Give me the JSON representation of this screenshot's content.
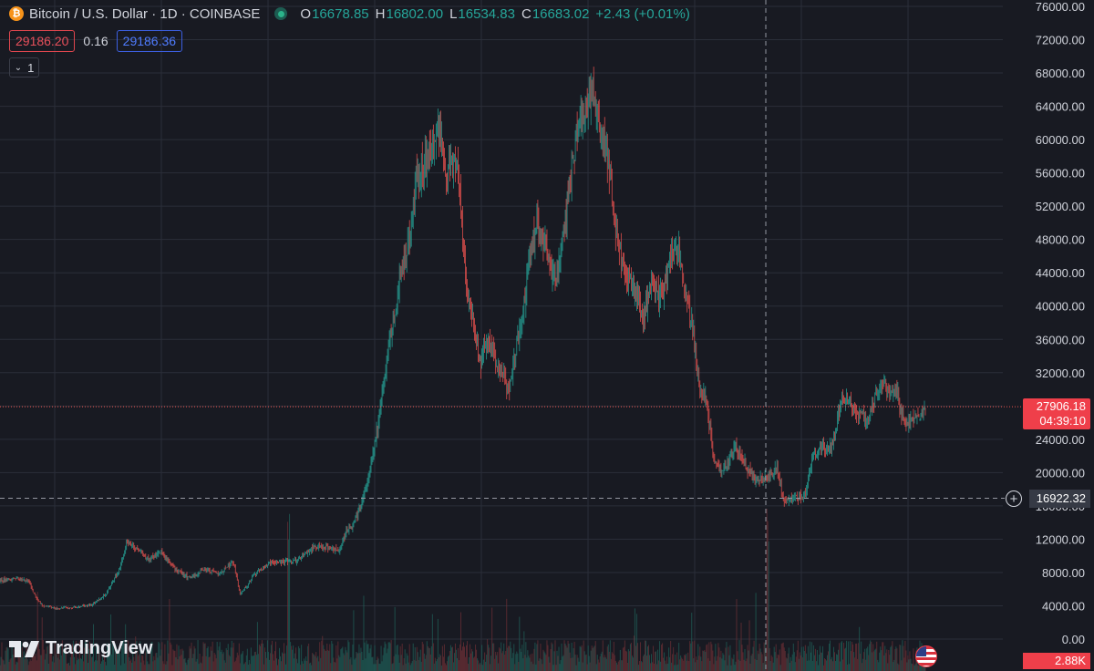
{
  "header": {
    "coin_badge": "₿",
    "symbol": "Bitcoin / U.S. Dollar · 1D · COINBASE",
    "ohlc": [
      {
        "key": "O",
        "value": "16678.85"
      },
      {
        "key": "H",
        "value": "16802.00"
      },
      {
        "key": "L",
        "value": "16534.83"
      },
      {
        "key": "C",
        "value": "16683.02"
      }
    ],
    "change": "+2.43 (+0.01%)"
  },
  "trade": {
    "sell": "29186.20",
    "spread": "0.16",
    "buy": "29186.36"
  },
  "indicators": {
    "count": "1"
  },
  "price_label": {
    "price": "27906.18",
    "countdown": "04:39:10"
  },
  "crosshair_label": {
    "price": "16922.32",
    "plus": "+"
  },
  "volume_label": "2.88K",
  "logo": {
    "text": "TradingView"
  },
  "colors": {
    "up": "#26a69a",
    "down": "#ef5350",
    "background": "#181a22",
    "grid": "#2a2e39"
  },
  "chart_data": {
    "type": "candlestick",
    "symbol": "BTCUSD",
    "interval": "1D",
    "yticks": [
      "76000.00",
      "72000.00",
      "68000.00",
      "64000.00",
      "60000.00",
      "56000.00",
      "52000.00",
      "48000.00",
      "44000.00",
      "40000.00",
      "36000.00",
      "32000.00",
      "28000.00",
      "24000.00",
      "20000.00",
      "16000.00",
      "12000.00",
      "8000.00",
      "4000.00",
      "0.00"
    ],
    "ylim": [
      0,
      76000
    ],
    "last_price": 27906.18,
    "crosshair_price": 16922.32,
    "grid": true,
    "price_path": [
      [
        0,
        7000
      ],
      [
        2,
        7300
      ],
      [
        4,
        7000
      ],
      [
        5,
        5100
      ],
      [
        6,
        4000
      ],
      [
        8,
        3700
      ],
      [
        11,
        3850
      ],
      [
        13,
        4100
      ],
      [
        15,
        5400
      ],
      [
        17,
        8500
      ],
      [
        18,
        11900
      ],
      [
        19,
        11000
      ],
      [
        21,
        9600
      ],
      [
        23,
        10300
      ],
      [
        25,
        8200
      ],
      [
        27,
        7300
      ],
      [
        29,
        8500
      ],
      [
        31,
        7700
      ],
      [
        33,
        9300
      ],
      [
        34,
        5400
      ],
      [
        35,
        6400
      ],
      [
        36,
        7800
      ],
      [
        38,
        9000
      ],
      [
        40,
        9300
      ],
      [
        42,
        9400
      ],
      [
        44,
        10800
      ],
      [
        45,
        11200
      ],
      [
        46,
        11000
      ],
      [
        48,
        10700
      ],
      [
        49,
        12900
      ],
      [
        50,
        13800
      ],
      [
        51,
        15800
      ],
      [
        52,
        19000
      ],
      [
        53,
        23000
      ],
      [
        54,
        29000
      ],
      [
        55,
        35000
      ],
      [
        56,
        40000
      ],
      [
        57,
        45000
      ],
      [
        58,
        48000
      ],
      [
        59,
        56000
      ],
      [
        60,
        57000
      ],
      [
        61,
        58000
      ],
      [
        62,
        62000
      ],
      [
        63,
        56000
      ],
      [
        64,
        57000
      ],
      [
        65,
        55000
      ],
      [
        66,
        42000
      ],
      [
        67,
        38000
      ],
      [
        68,
        33000
      ],
      [
        69,
        36000
      ],
      [
        70,
        34000
      ],
      [
        71,
        32000
      ],
      [
        72,
        30000
      ],
      [
        73,
        35000
      ],
      [
        74,
        39000
      ],
      [
        75,
        46000
      ],
      [
        76,
        50000
      ],
      [
        77,
        48000
      ],
      [
        78,
        44000
      ],
      [
        79,
        44000
      ],
      [
        80,
        50000
      ],
      [
        81,
        57000
      ],
      [
        82,
        63000
      ],
      [
        83,
        64000
      ],
      [
        84,
        66000
      ],
      [
        85,
        61000
      ],
      [
        86,
        58000
      ],
      [
        87,
        50000
      ],
      [
        88,
        46000
      ],
      [
        89,
        43000
      ],
      [
        90,
        42000
      ],
      [
        91,
        38000
      ],
      [
        92,
        43000
      ],
      [
        93,
        41000
      ],
      [
        94,
        42000
      ],
      [
        95,
        46000
      ],
      [
        96,
        47000
      ],
      [
        97,
        41000
      ],
      [
        98,
        38000
      ],
      [
        99,
        30000
      ],
      [
        100,
        29000
      ],
      [
        101,
        22000
      ],
      [
        102,
        20000
      ],
      [
        103,
        21000
      ],
      [
        104,
        23000
      ],
      [
        105,
        22000
      ],
      [
        106,
        20000
      ],
      [
        107,
        19500
      ],
      [
        108,
        19200
      ],
      [
        109,
        19800
      ],
      [
        110,
        20500
      ],
      [
        111,
        16500
      ],
      [
        112,
        16800
      ],
      [
        113,
        17000
      ],
      [
        114,
        17200
      ],
      [
        115,
        22000
      ],
      [
        116,
        23000
      ],
      [
        117,
        22500
      ],
      [
        118,
        24000
      ],
      [
        119,
        28000
      ],
      [
        120,
        29000
      ],
      [
        121,
        27500
      ],
      [
        122,
        27000
      ],
      [
        123,
        26500
      ],
      [
        124,
        29500
      ],
      [
        125,
        30500
      ],
      [
        126,
        30000
      ],
      [
        127,
        29500
      ],
      [
        128,
        26000
      ],
      [
        129,
        26200
      ],
      [
        130,
        26500
      ],
      [
        131,
        27906
      ]
    ],
    "volume_ylim": [
      0,
      2880
    ]
  }
}
